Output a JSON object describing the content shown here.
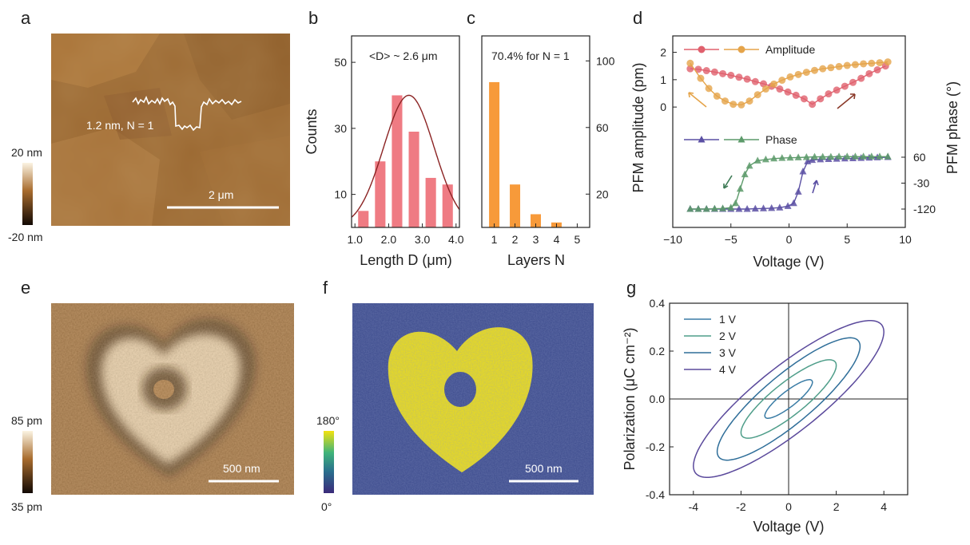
{
  "panel_letters": [
    "a",
    "b",
    "c",
    "d",
    "e",
    "f",
    "g"
  ],
  "panel_a": {
    "profile_label": "1.2 nm, N = 1",
    "scale_bar": "2 μm",
    "colorbar": {
      "max": "20 nm",
      "min": "-20 nm"
    },
    "colors": {
      "dark": "#1f1206",
      "mid": "#8b5a26",
      "light": "#f4e8c8",
      "bg": "#9a6730"
    }
  },
  "panel_e": {
    "scale_bar": "500 nm",
    "colorbar": {
      "max": "85 pm",
      "min": "35 pm"
    }
  },
  "panel_f": {
    "scale_bar": "500 nm",
    "colorbar": {
      "max": "180°",
      "min": "0°"
    },
    "colors": {
      "bg": "#3b4a8c",
      "fg": "#f2e20f"
    }
  },
  "chart_data": [
    {
      "panel": "b",
      "type": "bar",
      "annotation": "<D> ~ 2.6 μm",
      "xlabel": "Length D (μm)",
      "ylabel": "Counts",
      "xlim": [
        0.9,
        4.1
      ],
      "ylim": [
        0,
        58
      ],
      "xticks": [
        "1.0",
        "2.0",
        "3.0",
        "4.0"
      ],
      "yticks": [
        "10",
        "30",
        "50"
      ],
      "categories": [
        1.25,
        1.75,
        2.25,
        2.75,
        3.25,
        3.75
      ],
      "values": [
        5,
        20,
        40,
        29,
        15,
        13
      ],
      "fit": {
        "type": "gaussian",
        "peak": 40,
        "center": 2.6,
        "sigma": 0.75
      },
      "colors": {
        "bar": "#ef7b83",
        "fit": "#8b2323"
      }
    },
    {
      "panel": "c",
      "type": "bar",
      "annotation": "70.4% for N = 1",
      "xlabel": "Layers N",
      "ylabel": "",
      "xlim": [
        0.4,
        5.6
      ],
      "ylim": [
        0,
        58
      ],
      "ylim_right": [
        0,
        115
      ],
      "xticks": [
        "1",
        "2",
        "3",
        "4",
        "5"
      ],
      "yticks_right": [
        "20",
        "60",
        "100"
      ],
      "categories": [
        1,
        2,
        3,
        4,
        5
      ],
      "values": [
        44,
        13,
        4,
        1.5,
        0
      ],
      "colors": {
        "bar": "#f79a3a"
      }
    },
    {
      "panel": "d",
      "type": "line",
      "xlabel": "Voltage (V)",
      "ylabel": "PFM amplitude (pm)",
      "ylabel_right": "PFM phase (°)",
      "xlim": [
        -10,
        10
      ],
      "ylim": [
        -4.4,
        2.6
      ],
      "xticks": [
        "−10",
        "−5",
        "0",
        "5",
        "10"
      ],
      "yticks": [
        "0",
        "1",
        "2"
      ],
      "yticks_right": [
        "60",
        "-30",
        "-120"
      ],
      "series": [
        {
          "name": "Amplitude",
          "color": "#e0606d",
          "x": [
            -8.5,
            -7.8,
            -7.1,
            -6.4,
            -5.7,
            -5.0,
            -4.3,
            -3.6,
            -2.9,
            -2.2,
            -1.5,
            -0.8,
            -0.1,
            0.6,
            1.3,
            2.0,
            2.7,
            3.4,
            4.1,
            4.8,
            5.5,
            6.2,
            6.9,
            7.6,
            8.3
          ],
          "y": [
            1.4,
            1.38,
            1.33,
            1.28,
            1.22,
            1.16,
            1.09,
            1.02,
            0.93,
            0.85,
            0.76,
            0.66,
            0.55,
            0.43,
            0.3,
            0.1,
            0.3,
            0.48,
            0.62,
            0.76,
            0.9,
            1.05,
            1.22,
            1.36,
            1.5
          ]
        },
        {
          "name": "",
          "color": "#e5a44a",
          "x": [
            8.5,
            7.8,
            7.1,
            6.4,
            5.7,
            5.0,
            4.3,
            3.6,
            2.9,
            2.2,
            1.5,
            0.8,
            0.1,
            -0.6,
            -1.3,
            -2.0,
            -2.7,
            -3.4,
            -4.1,
            -4.8,
            -5.5,
            -6.2,
            -6.9,
            -7.6,
            -8.5
          ],
          "y": [
            1.65,
            1.62,
            1.6,
            1.58,
            1.55,
            1.52,
            1.48,
            1.44,
            1.4,
            1.34,
            1.27,
            1.19,
            1.1,
            0.98,
            0.84,
            0.66,
            0.45,
            0.22,
            0.08,
            0.1,
            0.22,
            0.4,
            0.68,
            1.05,
            1.6
          ]
        },
        {
          "name": "Phase",
          "color": "#5a4fa3",
          "x": [
            -8.5,
            -7.8,
            -7.1,
            -6.4,
            -5.7,
            -5.0,
            -4.3,
            -3.6,
            -2.9,
            -2.2,
            -1.5,
            -0.8,
            -0.1,
            0.4,
            0.8,
            1.2,
            1.6,
            2.0,
            2.7,
            3.4,
            4.1,
            4.8,
            5.5,
            6.2,
            6.9,
            7.6,
            8.5
          ],
          "y": [
            -120,
            -120,
            -120,
            -120,
            -120,
            -120,
            -120,
            -120,
            -119,
            -118,
            -117,
            -115,
            -110,
            -100,
            -60,
            10,
            45,
            50,
            52,
            53,
            54,
            55,
            56,
            57,
            58,
            59,
            60
          ]
        },
        {
          "name": "",
          "color": "#5c9a6a",
          "x": [
            8.5,
            7.8,
            7.1,
            6.4,
            5.7,
            5.0,
            4.3,
            3.6,
            2.9,
            2.2,
            1.5,
            0.8,
            0.1,
            -0.6,
            -1.3,
            -2.0,
            -2.7,
            -3.4,
            -3.8,
            -4.2,
            -4.6,
            -5.0,
            -5.7,
            -6.4,
            -7.1,
            -7.8,
            -8.5
          ],
          "y": [
            62,
            62,
            62,
            62,
            62,
            62,
            62,
            61,
            61,
            61,
            60,
            59,
            58,
            57,
            55,
            52,
            48,
            30,
            0,
            -50,
            -100,
            -115,
            -118,
            -119,
            -120,
            -120,
            -120
          ]
        }
      ]
    },
    {
      "panel": "g",
      "type": "line",
      "xlabel": "Voltage (V)",
      "ylabel": "Polarization (μC cm⁻²)",
      "xlim": [
        -5,
        5
      ],
      "ylim": [
        -0.4,
        0.4
      ],
      "xticks": [
        "-4",
        "-2",
        "0",
        "2",
        "4"
      ],
      "yticks": [
        "0.4",
        "0.2",
        "0.0",
        "-0.2",
        "-0.4"
      ],
      "series": [
        {
          "name": "1 V",
          "color": "#3a7ca5",
          "vmax": 1,
          "pmax": 0.07,
          "pr": 0.04
        },
        {
          "name": "2 V",
          "color": "#4f9e8a",
          "vmax": 2,
          "pmax": 0.14,
          "pr": 0.085
        },
        {
          "name": "3 V",
          "color": "#2f6e99",
          "vmax": 3,
          "pmax": 0.22,
          "pr": 0.13
        },
        {
          "name": "4 V",
          "color": "#5b4a9c",
          "vmax": 4,
          "pmax": 0.28,
          "pr": 0.17
        }
      ]
    }
  ]
}
